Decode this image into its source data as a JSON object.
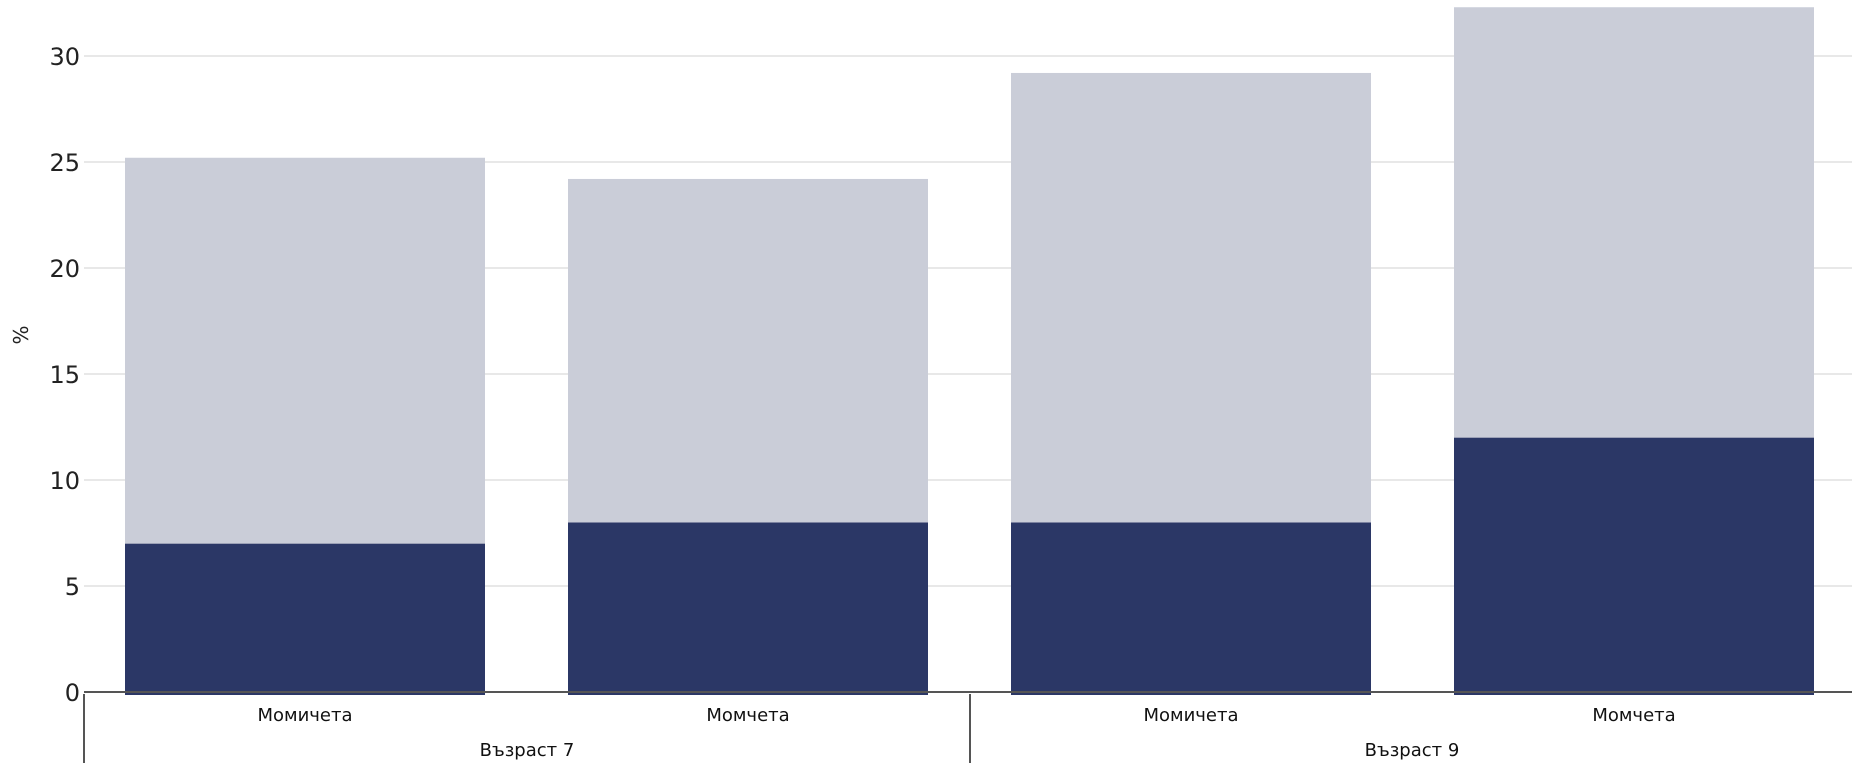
{
  "chart_data": {
    "type": "bar",
    "stacked": true,
    "ylabel": "%",
    "ylim": [
      0,
      32
    ],
    "yticks": [
      0,
      5,
      10,
      15,
      20,
      25,
      30
    ],
    "grid": true,
    "groups": [
      {
        "label": "Възраст 7",
        "categories": [
          "Момичета",
          "Момчета"
        ]
      },
      {
        "label": "Възраст 9",
        "categories": [
          "Момичета",
          "Момчета"
        ]
      }
    ],
    "categories": [
      "Момичета",
      "Момчета",
      "Момичета",
      "Момчета"
    ],
    "series": [
      {
        "values": [
          7,
          8,
          8,
          12
        ],
        "color": "#2b3766"
      },
      {
        "values": [
          18.2,
          16.2,
          21.2,
          20.3
        ],
        "color": "#cacdd8"
      }
    ],
    "colors": {
      "grid": "#e8e8e8",
      "axis": "#555555"
    }
  }
}
